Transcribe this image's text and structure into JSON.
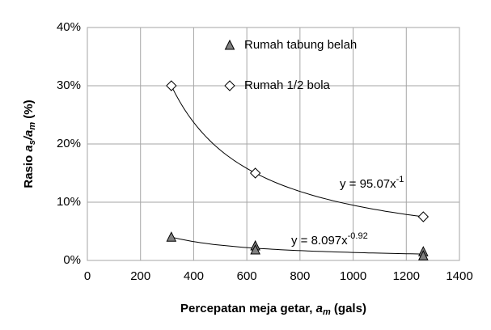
{
  "chart_data": {
    "type": "scatter",
    "xlabel": [
      "Percepatan meja getar, ",
      "a",
      "m",
      " (gals)"
    ],
    "ylabel": [
      "Rasio  ",
      "a",
      "s",
      "/",
      "a",
      "m",
      "  (%)"
    ],
    "xlim": [
      0,
      1400
    ],
    "xticks": [
      0,
      200,
      400,
      600,
      800,
      1000,
      1200,
      1400
    ],
    "ylim": [
      0,
      40
    ],
    "yticks": [
      {
        "value": 0,
        "label": "0%"
      },
      {
        "value": 10,
        "label": "10%"
      },
      {
        "value": 20,
        "label": "20%"
      },
      {
        "value": 30,
        "label": "30%"
      },
      {
        "value": 40,
        "label": "40%"
      }
    ],
    "grid": true,
    "series": [
      {
        "name": "Rumah tabung belah",
        "marker": "triangle",
        "color": "#808080",
        "x": [
          316,
          632,
          632,
          1264,
          1264
        ],
        "values": [
          4,
          2.5,
          1.8,
          1.5,
          0.8
        ],
        "trend_label": [
          "y = 8.097x",
          "-0.92"
        ]
      },
      {
        "name": "Rumah 1/2 bola",
        "marker": "diamond",
        "color": "#ffffff",
        "x": [
          316,
          632,
          1264
        ],
        "values": [
          30,
          15,
          7.5
        ],
        "trend_label": [
          "y = 95.07x",
          "-1"
        ]
      }
    ]
  }
}
